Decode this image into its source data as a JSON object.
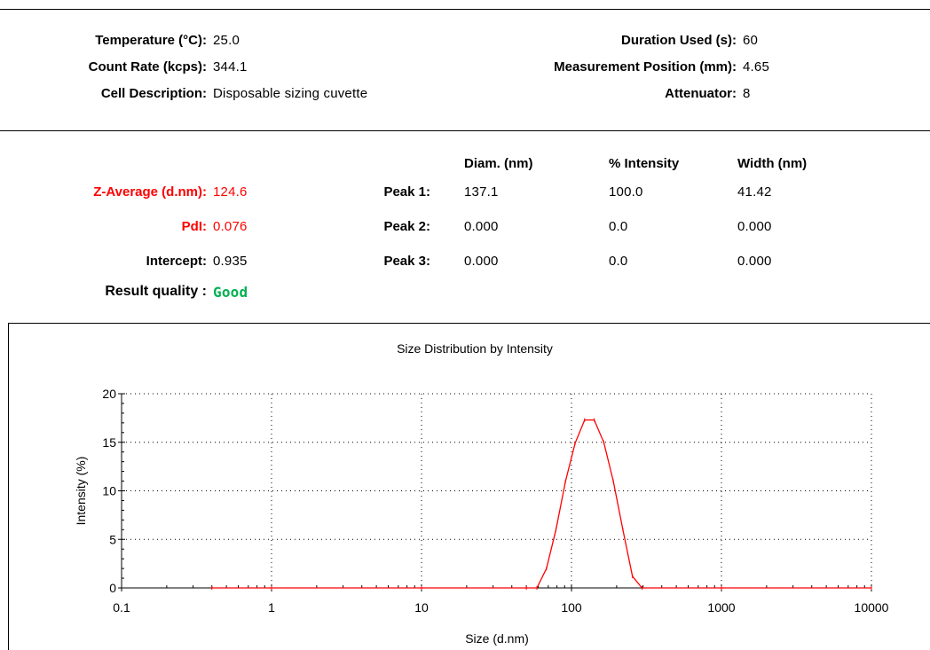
{
  "settings": {
    "temperature_label": "Temperature (°C):",
    "temperature_value": "25.0",
    "count_rate_label": "Count Rate (kcps):",
    "count_rate_value": "344.1",
    "cell_label": "Cell Description:",
    "cell_value": "Disposable sizing cuvette",
    "duration_label": "Duration Used (s):",
    "duration_value": "60",
    "position_label": "Measurement Position (mm):",
    "position_value": "4.65",
    "attenuator_label": "Attenuator:",
    "attenuator_value": "8"
  },
  "results": {
    "zavg_label": "Z-Average (d.nm):",
    "zavg_value": "124.6",
    "pdi_label": "PdI:",
    "pdi_value": "0.076",
    "intercept_label": "Intercept:",
    "intercept_value": "0.935",
    "quality_label": "Result quality :",
    "quality_value": "Good",
    "columns": [
      "Diam. (nm)",
      "% Intensity",
      "Width (nm)"
    ],
    "peaks": [
      {
        "label": "Peak 1:",
        "diam": "137.1",
        "intensity": "100.0",
        "width": "41.42"
      },
      {
        "label": "Peak 2:",
        "diam": "0.000",
        "intensity": "0.0",
        "width": "0.000"
      },
      {
        "label": "Peak 3:",
        "diam": "0.000",
        "intensity": "0.0",
        "width": "0.000"
      }
    ]
  },
  "colors": {
    "highlight": "#ff0000",
    "good": "#00b050",
    "series": "#ff0000"
  },
  "chart_data": {
    "type": "line",
    "title": "Size Distribution by Intensity",
    "xlabel": "Size (d.nm)",
    "ylabel": "Intensity (%)",
    "x_scale": "log",
    "xlim": [
      0.1,
      10000
    ],
    "ylim": [
      0,
      20
    ],
    "x_ticks": [
      "0.1",
      "1",
      "10",
      "100",
      "1000",
      "10000"
    ],
    "y_ticks": [
      "0",
      "5",
      "10",
      "15",
      "20"
    ],
    "grid": true,
    "series": [
      {
        "x": [
          0.4,
          1,
          10,
          50,
          58.8,
          68.1,
          78.8,
          91.3,
          105.7,
          122.4,
          141.8,
          164.2,
          190.1,
          220.2,
          255.0,
          295.3,
          1000,
          10000
        ],
        "y": [
          0,
          0,
          0,
          0,
          0.0,
          2.0,
          6.0,
          11.0,
          14.9,
          17.3,
          17.3,
          15.0,
          11.0,
          6.0,
          1.2,
          0.0,
          0,
          0
        ]
      }
    ]
  }
}
